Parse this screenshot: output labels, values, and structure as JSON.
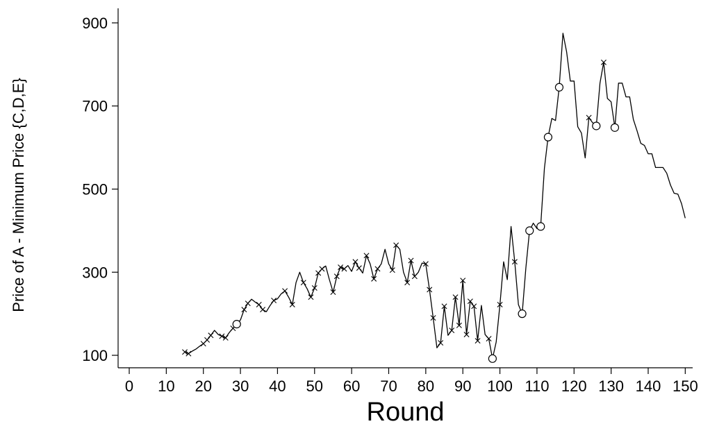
{
  "chart_data": {
    "type": "line",
    "title": "",
    "xlabel": "Round",
    "ylabel": "Price of A - Minimum Price {C,D,E}",
    "xlim": [
      -3,
      152
    ],
    "ylim": [
      70,
      935
    ],
    "x_ticks": [
      0,
      10,
      20,
      30,
      40,
      50,
      60,
      70,
      80,
      90,
      100,
      110,
      120,
      130,
      140,
      150
    ],
    "y_ticks": [
      100,
      300,
      500,
      700,
      900
    ],
    "grid": false,
    "legend": "none",
    "line_color": "#000000",
    "series": [
      {
        "points": [
          [
            15,
            108
          ],
          [
            16,
            104
          ],
          [
            17,
            110
          ],
          [
            18,
            115
          ],
          [
            19,
            122
          ],
          [
            20,
            128
          ],
          [
            21,
            137
          ],
          [
            22,
            148
          ],
          [
            23,
            160
          ],
          [
            24,
            150
          ],
          [
            25,
            146
          ],
          [
            26,
            142
          ],
          [
            27,
            155
          ],
          [
            28,
            165
          ],
          [
            29,
            175
          ],
          [
            30,
            185
          ],
          [
            31,
            210
          ],
          [
            32,
            225
          ],
          [
            33,
            235
          ],
          [
            34,
            228
          ],
          [
            35,
            222
          ],
          [
            36,
            210
          ],
          [
            37,
            205
          ],
          [
            38,
            220
          ],
          [
            39,
            232
          ],
          [
            40,
            236
          ],
          [
            41,
            248
          ],
          [
            42,
            255
          ],
          [
            43,
            240
          ],
          [
            44,
            222
          ],
          [
            45,
            275
          ],
          [
            46,
            300
          ],
          [
            47,
            275
          ],
          [
            48,
            260
          ],
          [
            49,
            240
          ],
          [
            50,
            262
          ],
          [
            51,
            298
          ],
          [
            52,
            308
          ],
          [
            53,
            315
          ],
          [
            54,
            282
          ],
          [
            55,
            252
          ],
          [
            56,
            290
          ],
          [
            57,
            312
          ],
          [
            58,
            308
          ],
          [
            59,
            316
          ],
          [
            60,
            302
          ],
          [
            61,
            325
          ],
          [
            62,
            310
          ],
          [
            63,
            298
          ],
          [
            64,
            340
          ],
          [
            65,
            320
          ],
          [
            66,
            284
          ],
          [
            67,
            308
          ],
          [
            68,
            320
          ],
          [
            69,
            355
          ],
          [
            70,
            320
          ],
          [
            71,
            305
          ],
          [
            72,
            365
          ],
          [
            73,
            355
          ],
          [
            74,
            300
          ],
          [
            75,
            275
          ],
          [
            76,
            328
          ],
          [
            77,
            290
          ],
          [
            78,
            300
          ],
          [
            79,
            322
          ],
          [
            80,
            320
          ],
          [
            81,
            258
          ],
          [
            82,
            190
          ],
          [
            83,
            118
          ],
          [
            84,
            130
          ],
          [
            85,
            218
          ],
          [
            86,
            148
          ],
          [
            87,
            160
          ],
          [
            88,
            240
          ],
          [
            89,
            172
          ],
          [
            90,
            280
          ],
          [
            91,
            150
          ],
          [
            92,
            230
          ],
          [
            93,
            218
          ],
          [
            94,
            135
          ],
          [
            95,
            220
          ],
          [
            96,
            150
          ],
          [
            97,
            140
          ],
          [
            98,
            92
          ],
          [
            99,
            132
          ],
          [
            100,
            222
          ],
          [
            101,
            325
          ],
          [
            102,
            282
          ],
          [
            103,
            410
          ],
          [
            104,
            325
          ],
          [
            105,
            222
          ],
          [
            106,
            200
          ],
          [
            107,
            310
          ],
          [
            108,
            400
          ],
          [
            109,
            418
          ],
          [
            110,
            405
          ],
          [
            111,
            410
          ],
          [
            112,
            550
          ],
          [
            113,
            625
          ],
          [
            114,
            670
          ],
          [
            115,
            665
          ],
          [
            116,
            745
          ],
          [
            117,
            875
          ],
          [
            118,
            830
          ],
          [
            119,
            760
          ],
          [
            120,
            760
          ],
          [
            121,
            650
          ],
          [
            122,
            635
          ],
          [
            123,
            575
          ],
          [
            124,
            672
          ],
          [
            125,
            660
          ],
          [
            126,
            652
          ],
          [
            127,
            755
          ],
          [
            128,
            805
          ],
          [
            129,
            718
          ],
          [
            130,
            710
          ],
          [
            131,
            648
          ],
          [
            132,
            755
          ],
          [
            133,
            755
          ],
          [
            134,
            722
          ],
          [
            135,
            722
          ],
          [
            136,
            668
          ],
          [
            137,
            640
          ],
          [
            138,
            610
          ],
          [
            139,
            605
          ],
          [
            140,
            585
          ],
          [
            141,
            585
          ],
          [
            142,
            552
          ],
          [
            143,
            552
          ],
          [
            144,
            552
          ],
          [
            145,
            538
          ],
          [
            146,
            510
          ],
          [
            147,
            490
          ],
          [
            148,
            488
          ],
          [
            149,
            465
          ],
          [
            150,
            430
          ]
        ]
      }
    ],
    "cross_markers": [
      [
        15,
        108
      ],
      [
        16,
        104
      ],
      [
        20,
        128
      ],
      [
        21,
        137
      ],
      [
        22,
        148
      ],
      [
        25,
        146
      ],
      [
        26,
        142
      ],
      [
        28,
        165
      ],
      [
        31,
        210
      ],
      [
        32,
        225
      ],
      [
        35,
        222
      ],
      [
        36,
        210
      ],
      [
        39,
        232
      ],
      [
        42,
        255
      ],
      [
        44,
        222
      ],
      [
        47,
        275
      ],
      [
        49,
        240
      ],
      [
        50,
        262
      ],
      [
        51,
        298
      ],
      [
        52,
        308
      ],
      [
        55,
        252
      ],
      [
        56,
        290
      ],
      [
        57,
        312
      ],
      [
        58,
        308
      ],
      [
        61,
        325
      ],
      [
        62,
        310
      ],
      [
        64,
        340
      ],
      [
        66,
        284
      ],
      [
        67,
        308
      ],
      [
        71,
        305
      ],
      [
        72,
        365
      ],
      [
        75,
        275
      ],
      [
        76,
        328
      ],
      [
        77,
        290
      ],
      [
        80,
        320
      ],
      [
        81,
        258
      ],
      [
        82,
        190
      ],
      [
        84,
        130
      ],
      [
        85,
        218
      ],
      [
        87,
        160
      ],
      [
        88,
        240
      ],
      [
        89,
        172
      ],
      [
        90,
        280
      ],
      [
        91,
        150
      ],
      [
        92,
        230
      ],
      [
        93,
        218
      ],
      [
        94,
        135
      ],
      [
        97,
        140
      ],
      [
        100,
        222
      ],
      [
        104,
        325
      ],
      [
        124,
        672
      ],
      [
        128,
        805
      ]
    ],
    "circle_markers": [
      [
        29,
        175
      ],
      [
        98,
        92
      ],
      [
        106,
        200
      ],
      [
        108,
        400
      ],
      [
        111,
        410
      ],
      [
        113,
        625
      ],
      [
        116,
        745
      ],
      [
        126,
        652
      ],
      [
        131,
        648
      ]
    ]
  }
}
